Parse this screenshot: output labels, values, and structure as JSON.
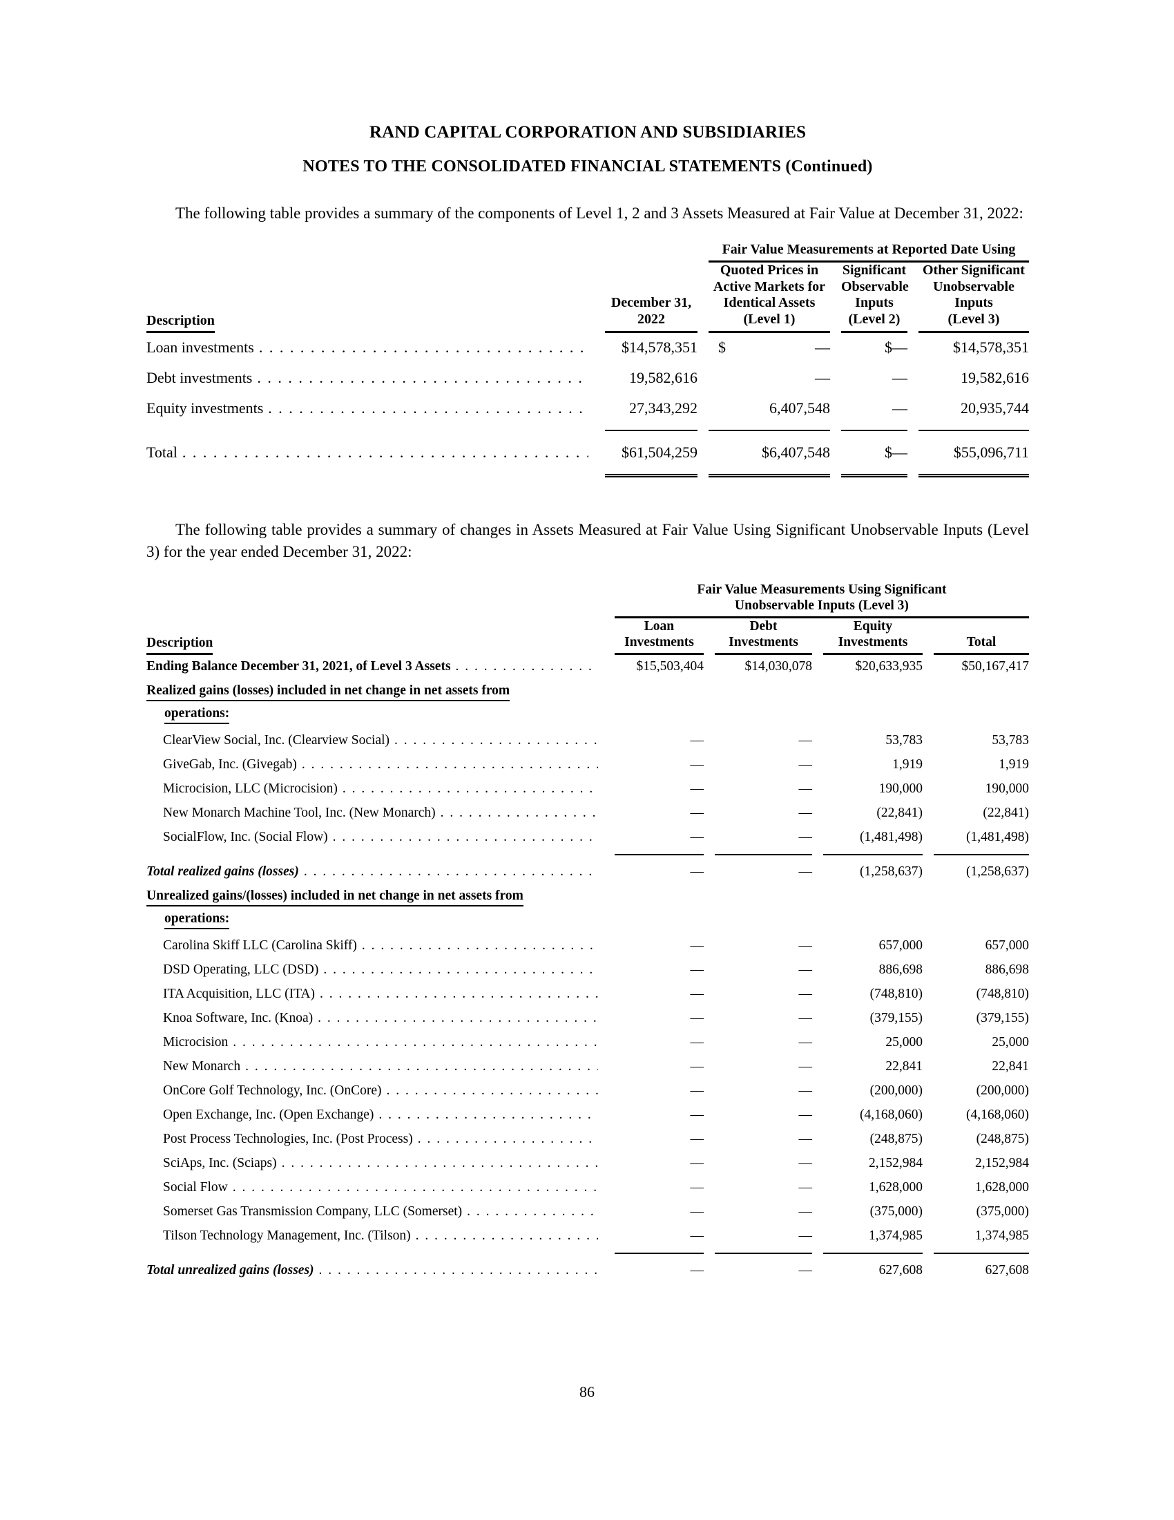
{
  "doc": {
    "title": "RAND CAPITAL CORPORATION AND SUBSIDIARIES",
    "subtitle": "NOTES TO THE CONSOLIDATED FINANCIAL STATEMENTS (Continued)",
    "intro1": "The following table provides a summary of the components of Level 1, 2 and 3 Assets Measured at Fair Value at December 31, 2022:",
    "intro2": "The following table provides a summary of changes in Assets Measured at Fair Value Using Significant Unobservable Inputs (Level 3) for the year ended December 31, 2022:",
    "page_number": "86"
  },
  "table1": {
    "spanner": "Fair Value Measurements at Reported Date Using",
    "col_desc": "Description",
    "col_headers": [
      "December 31,\n2022",
      "Quoted Prices in\nActive Markets for\nIdentical Assets\n(Level 1)",
      "Significant\nObservable\nInputs\n(Level 2)",
      "Other Significant\nUnobservable\nInputs\n(Level 3)"
    ],
    "rows": [
      {
        "type": "data",
        "label": "Loan investments",
        "values": [
          "$14,578,351",
          "$|—",
          "$—",
          "$14,578,351"
        ]
      },
      {
        "type": "data",
        "label": "Debt investments",
        "values": [
          "19,582,616",
          "—",
          "—",
          "19,582,616"
        ]
      },
      {
        "type": "data",
        "label": "Equity investments",
        "values": [
          "27,343,292",
          "6,407,548",
          "—",
          "20,935,744"
        ],
        "rule_after": "single"
      },
      {
        "type": "data",
        "label": "Total",
        "values": [
          "$61,504,259",
          "$6,407,548",
          "$—",
          "$55,096,711"
        ],
        "rule_after": "double"
      }
    ]
  },
  "table2": {
    "spanner": "Fair Value Measurements Using Significant\nUnobservable Inputs (Level 3)",
    "col_desc": "Description",
    "col_headers": [
      "Loan\nInvestments",
      "Debt\nInvestments",
      "Equity\nInvestments",
      "Total"
    ],
    "rows": [
      {
        "type": "data",
        "style": "bold",
        "label": "Ending Balance December 31, 2021, of Level 3 Assets",
        "values": [
          "$15,503,404",
          "$14,030,078",
          "$20,633,935",
          "$50,167,417"
        ]
      },
      {
        "type": "section",
        "line1": "Realized gains (losses) included in net change in net assets from",
        "line2": "operations:"
      },
      {
        "type": "data",
        "indent": true,
        "label": "ClearView Social, Inc. (Clearview Social)",
        "values": [
          "—",
          "—",
          "53,783",
          "53,783"
        ]
      },
      {
        "type": "data",
        "indent": true,
        "label": "GiveGab, Inc. (Givegab)",
        "values": [
          "—",
          "—",
          "1,919",
          "1,919"
        ]
      },
      {
        "type": "data",
        "indent": true,
        "label": "Microcision, LLC (Microcision)",
        "values": [
          "—",
          "—",
          "190,000",
          "190,000"
        ]
      },
      {
        "type": "data",
        "indent": true,
        "label": "New Monarch Machine Tool, Inc. (New Monarch)",
        "values": [
          "—",
          "—",
          "(22,841)",
          "(22,841)"
        ]
      },
      {
        "type": "data",
        "indent": true,
        "label": "SocialFlow, Inc. (Social Flow)",
        "values": [
          "—",
          "—",
          "(1,481,498)",
          "(1,481,498)"
        ],
        "rule_after": "single"
      },
      {
        "type": "data",
        "style": "total",
        "label": "Total realized gains (losses)",
        "values": [
          "—",
          "—",
          "(1,258,637)",
          "(1,258,637)"
        ]
      },
      {
        "type": "section",
        "line1": "Unrealized gains/(losses) included in net change in net assets from",
        "line2": "operations:"
      },
      {
        "type": "data",
        "indent": true,
        "label": "Carolina Skiff LLC (Carolina Skiff)",
        "values": [
          "—",
          "—",
          "657,000",
          "657,000"
        ]
      },
      {
        "type": "data",
        "indent": true,
        "label": "DSD Operating, LLC (DSD)",
        "values": [
          "—",
          "—",
          "886,698",
          "886,698"
        ]
      },
      {
        "type": "data",
        "indent": true,
        "label": "ITA Acquisition, LLC (ITA)",
        "values": [
          "—",
          "—",
          "(748,810)",
          "(748,810)"
        ]
      },
      {
        "type": "data",
        "indent": true,
        "label": "Knoa Software, Inc. (Knoa)",
        "values": [
          "—",
          "—",
          "(379,155)",
          "(379,155)"
        ]
      },
      {
        "type": "data",
        "indent": true,
        "label": "Microcision",
        "values": [
          "—",
          "—",
          "25,000",
          "25,000"
        ]
      },
      {
        "type": "data",
        "indent": true,
        "label": "New Monarch",
        "values": [
          "—",
          "—",
          "22,841",
          "22,841"
        ]
      },
      {
        "type": "data",
        "indent": true,
        "label": "OnCore Golf Technology, Inc. (OnCore)",
        "values": [
          "—",
          "—",
          "(200,000)",
          "(200,000)"
        ]
      },
      {
        "type": "data",
        "indent": true,
        "label": "Open Exchange, Inc. (Open Exchange)",
        "values": [
          "—",
          "—",
          "(4,168,060)",
          "(4,168,060)"
        ]
      },
      {
        "type": "data",
        "indent": true,
        "label": "Post Process Technologies, Inc. (Post Process)",
        "values": [
          "—",
          "—",
          "(248,875)",
          "(248,875)"
        ]
      },
      {
        "type": "data",
        "indent": true,
        "label": "SciAps, Inc. (Sciaps)",
        "values": [
          "—",
          "—",
          "2,152,984",
          "2,152,984"
        ]
      },
      {
        "type": "data",
        "indent": true,
        "label": "Social Flow",
        "values": [
          "—",
          "—",
          "1,628,000",
          "1,628,000"
        ]
      },
      {
        "type": "data",
        "indent": true,
        "label": "Somerset Gas Transmission Company, LLC (Somerset)",
        "values": [
          "—",
          "—",
          "(375,000)",
          "(375,000)"
        ]
      },
      {
        "type": "data",
        "indent": true,
        "label": "Tilson Technology Management, Inc. (Tilson)",
        "values": [
          "—",
          "—",
          "1,374,985",
          "1,374,985"
        ],
        "rule_after": "single"
      },
      {
        "type": "data",
        "style": "total",
        "label": "Total unrealized gains (losses)",
        "values": [
          "—",
          "—",
          "627,608",
          "627,608"
        ]
      }
    ]
  }
}
